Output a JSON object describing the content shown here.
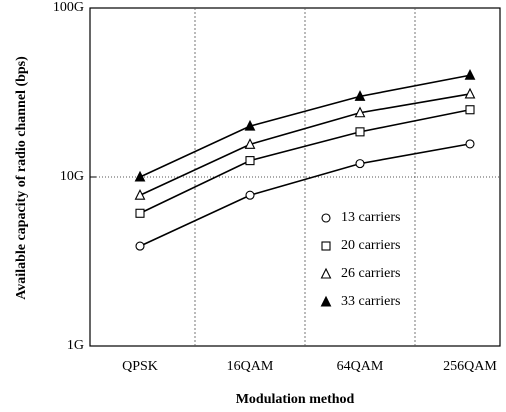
{
  "chart_data": {
    "type": "line",
    "xlabel": "Modulation method",
    "ylabel": "Available capacity of radio channel (bps)",
    "categories": [
      "QPSK",
      "16QAM",
      "64QAM",
      "256QAM"
    ],
    "series": [
      {
        "name": "13 carriers",
        "color": "#000000",
        "marker": "circle",
        "values": [
          3.9,
          7.8,
          12,
          15.7
        ]
      },
      {
        "name": "20 carriers",
        "color": "#000000",
        "marker": "square",
        "values": [
          6.1,
          12.5,
          18.5,
          25
        ]
      },
      {
        "name": "26 carriers",
        "color": "#000000",
        "marker": "triangle",
        "values": [
          7.8,
          15.6,
          24,
          31
        ]
      },
      {
        "name": "33 carriers",
        "color": "#000000",
        "marker": "triangle-filled",
        "values": [
          10,
          20,
          30,
          40
        ]
      }
    ],
    "ylim": [
      1,
      100
    ],
    "yticks": [
      {
        "value": 1,
        "label": "1G"
      },
      {
        "value": 10,
        "label": "10G"
      },
      {
        "value": 100,
        "label": "100G"
      }
    ],
    "yscale": "log",
    "grid": true,
    "legend": "right"
  }
}
